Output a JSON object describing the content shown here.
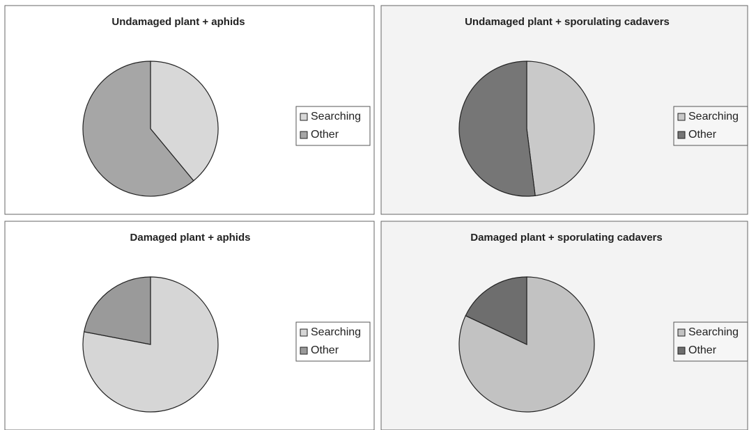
{
  "chart_data": [
    {
      "type": "pie",
      "title": "Undamaged plant + aphids",
      "categories": [
        "Searching",
        "Other"
      ],
      "values": [
        39,
        61
      ],
      "colors": [
        "#d8d8d8",
        "#a6a6a6"
      ],
      "legend": "right"
    },
    {
      "type": "pie",
      "title": "Undamaged plant  + sporulating cadavers",
      "categories": [
        "Searching",
        "Other"
      ],
      "values": [
        48,
        52
      ],
      "colors": [
        "#c9c9c9",
        "#767676"
      ],
      "legend": "right"
    },
    {
      "type": "pie",
      "title": "Damaged plant + aphids",
      "categories": [
        "Searching",
        "Other"
      ],
      "values": [
        78,
        22
      ],
      "colors": [
        "#d6d6d6",
        "#9a9a9a"
      ],
      "legend": "right"
    },
    {
      "type": "pie",
      "title": "Damaged plant + sporulating cadavers",
      "categories": [
        "Searching",
        "Other"
      ],
      "values": [
        82,
        18
      ],
      "colors": [
        "#c2c2c2",
        "#6e6e6e"
      ],
      "legend": "right"
    }
  ]
}
